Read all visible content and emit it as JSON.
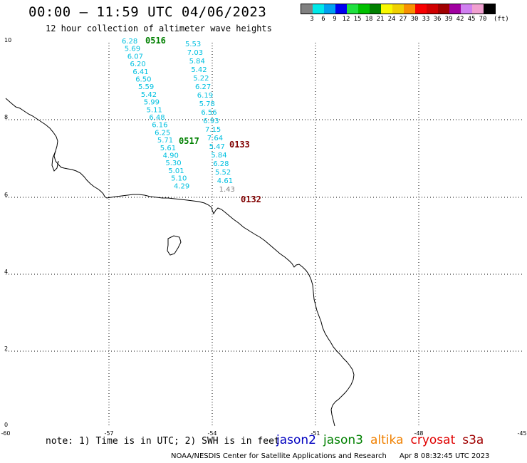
{
  "title": "00:00 – 11:59 UTC 04/06/2023",
  "subtitle": "12 hour collection of altimeter wave heights",
  "legend": {
    "colors": [
      "#808080",
      "#00e8e8",
      "#00a0f0",
      "#0000f0",
      "#20e040",
      "#00c000",
      "#008000",
      "#f8f800",
      "#f0d000",
      "#f89000",
      "#f80000",
      "#d00000",
      "#a00000",
      "#a000a0",
      "#d080f0",
      "#f0a0d0",
      "#000000"
    ],
    "labels": [
      "3",
      "6",
      "9",
      "12",
      "15",
      "18",
      "21",
      "24",
      "27",
      "30",
      "33",
      "36",
      "39",
      "42",
      "45",
      "70"
    ],
    "unit": "(ft)"
  },
  "axes": {
    "y_ticks": [
      "10",
      "8",
      "6",
      "4",
      "2",
      "0"
    ],
    "x_ticks": [
      "-60",
      "-57",
      "-54",
      "-51",
      "-48",
      "-45"
    ]
  },
  "passes": [
    {
      "label": "0516",
      "color": "#008000"
    },
    {
      "label": "0517",
      "color": "#008000"
    },
    {
      "label": "0133",
      "color": "#800000"
    },
    {
      "label": "0132",
      "color": "#800000"
    }
  ],
  "swh": {
    "track1": [
      "6.28",
      "5.69",
      "6.07",
      "6.20",
      "6.41",
      "6.50",
      "5.59",
      "5.42",
      "5.99",
      "5.11",
      "6.48",
      "6.16",
      "6.25",
      "5.71",
      "5.61",
      "4.90",
      "5.30",
      "5.01",
      "5.10",
      "4.29"
    ],
    "track2": [
      "5.53",
      "7.03",
      "5.84",
      "5.42",
      "5.22",
      "6.27",
      "6.19",
      "5.78",
      "6.56",
      "6.93",
      "7.15",
      "7.64",
      "5.47",
      "5.84",
      "6.28",
      "5.52",
      "4.61",
      "1.43"
    ]
  },
  "note": "note:  1) Time is in UTC;  2) SWH is in feet",
  "missions": [
    {
      "name": "jason2",
      "color": "#0000c0"
    },
    {
      "name": "jason3",
      "color": "#008000"
    },
    {
      "name": "altika",
      "color": "#f08000"
    },
    {
      "name": "cryosat",
      "color": "#e00000"
    },
    {
      "name": "s3a",
      "color": "#a00000"
    }
  ],
  "credit": {
    "org": "NOAA/NESDIS Center for Satellite Applications and Research",
    "timestamp": "Apr  8 08:32:45 UTC 2023"
  }
}
